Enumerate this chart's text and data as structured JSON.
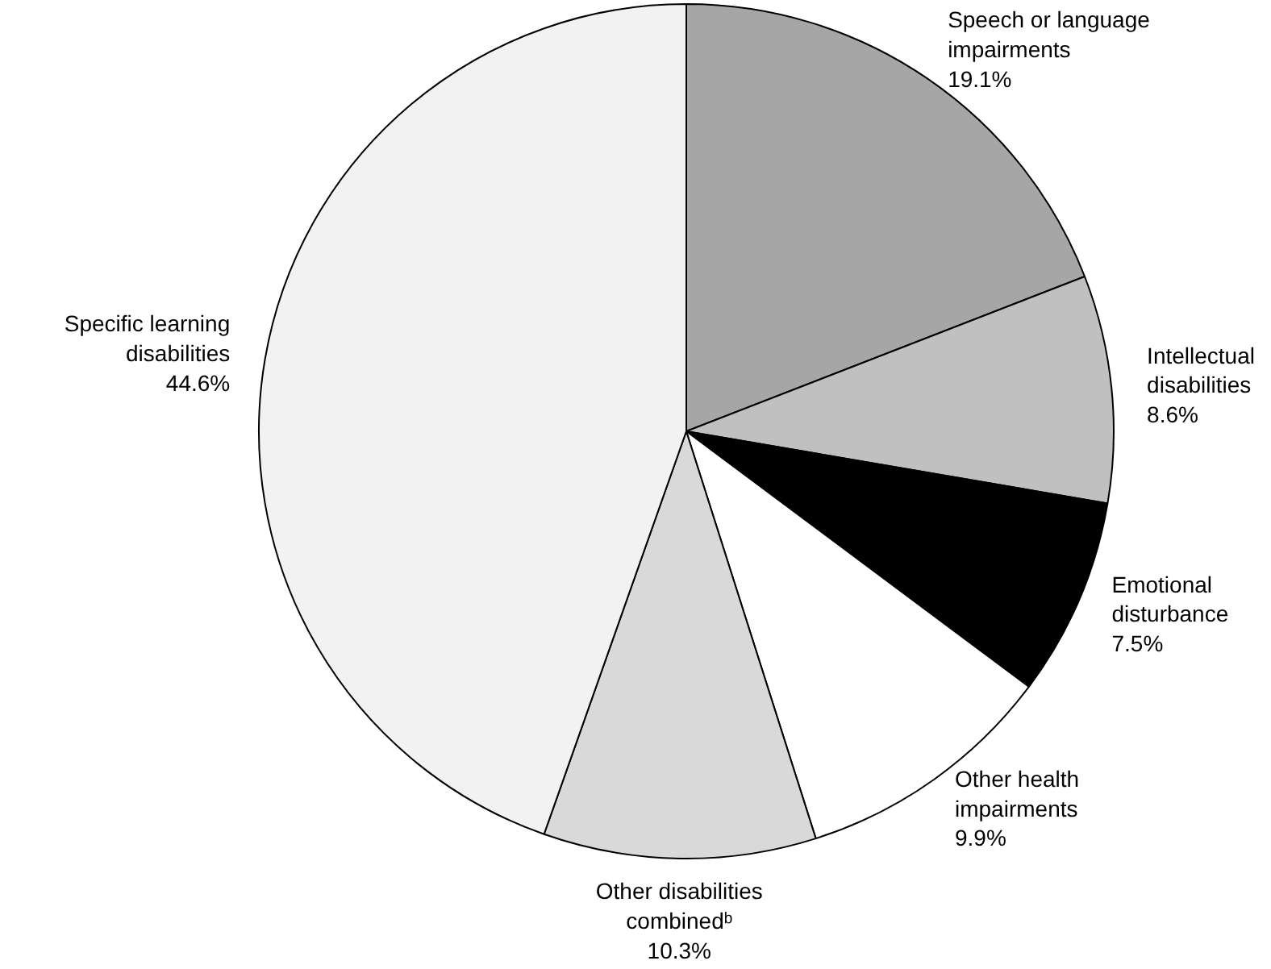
{
  "chart_data": {
    "type": "pie",
    "categories": [
      "Speech or language\nimpairments",
      "Intellectual\ndisabilities",
      "Emotional\ndisturbance",
      "Other health\nimpairments",
      "Other disabilities\ncombinedᵇ",
      "Specific learning\ndisabilities"
    ],
    "values": [
      19.1,
      8.6,
      7.5,
      9.9,
      10.3,
      44.6
    ],
    "colors": [
      "#a6a6a6",
      "#c0c0c0",
      "#000000",
      "#ffffff",
      "#d9d9d9",
      "#f2f2f2"
    ],
    "value_labels": [
      "19.1%",
      "8.6%",
      "7.5%",
      "9.9%",
      "10.3%",
      "44.6%"
    ]
  }
}
